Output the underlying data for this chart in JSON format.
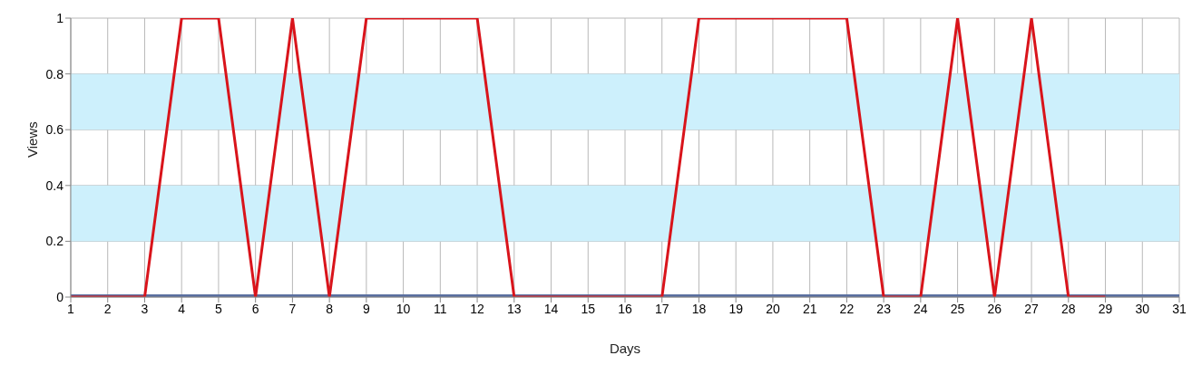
{
  "chart_data": {
    "type": "line",
    "xlabel": "Days",
    "ylabel": "Views",
    "x": [
      1,
      2,
      3,
      4,
      5,
      6,
      7,
      8,
      9,
      10,
      11,
      12,
      13,
      14,
      15,
      16,
      17,
      18,
      19,
      20,
      21,
      22,
      23,
      24,
      25,
      26,
      27,
      28,
      29,
      30,
      31
    ],
    "series": [
      {
        "color": "#5a6fa0",
        "values": [
          0,
          0,
          0,
          0,
          0,
          0,
          0,
          0,
          0,
          0,
          0,
          0,
          0,
          0,
          0,
          0,
          0,
          0,
          0,
          0,
          0,
          0,
          0,
          0,
          0,
          0,
          0,
          0,
          0,
          0,
          0
        ]
      },
      {
        "color": "#d9141b",
        "values": [
          0,
          0,
          0,
          1,
          1,
          0,
          1,
          0,
          1,
          1,
          1,
          1,
          0,
          0,
          0,
          0,
          0,
          1,
          1,
          1,
          1,
          1,
          0,
          0,
          1,
          0,
          1,
          0,
          0,
          null,
          null
        ]
      }
    ],
    "xlim": [
      1,
      31
    ],
    "xticks": [
      1,
      2,
      3,
      4,
      5,
      6,
      7,
      8,
      9,
      10,
      11,
      12,
      13,
      14,
      15,
      16,
      17,
      18,
      19,
      20,
      21,
      22,
      23,
      24,
      25,
      26,
      27,
      28,
      29,
      30,
      31
    ],
    "ylim": [
      0,
      1
    ],
    "yticks": [
      0,
      0.2,
      0.4,
      0.6,
      0.8,
      1
    ],
    "bands": [
      {
        "axis": "y",
        "from": 0.2,
        "to": 0.4,
        "color": "#cdf0fc"
      },
      {
        "axis": "y",
        "from": 0.6,
        "to": 0.8,
        "color": "#cdf0fc"
      }
    ],
    "grid": true,
    "marker": "none",
    "line_style": "solid"
  }
}
